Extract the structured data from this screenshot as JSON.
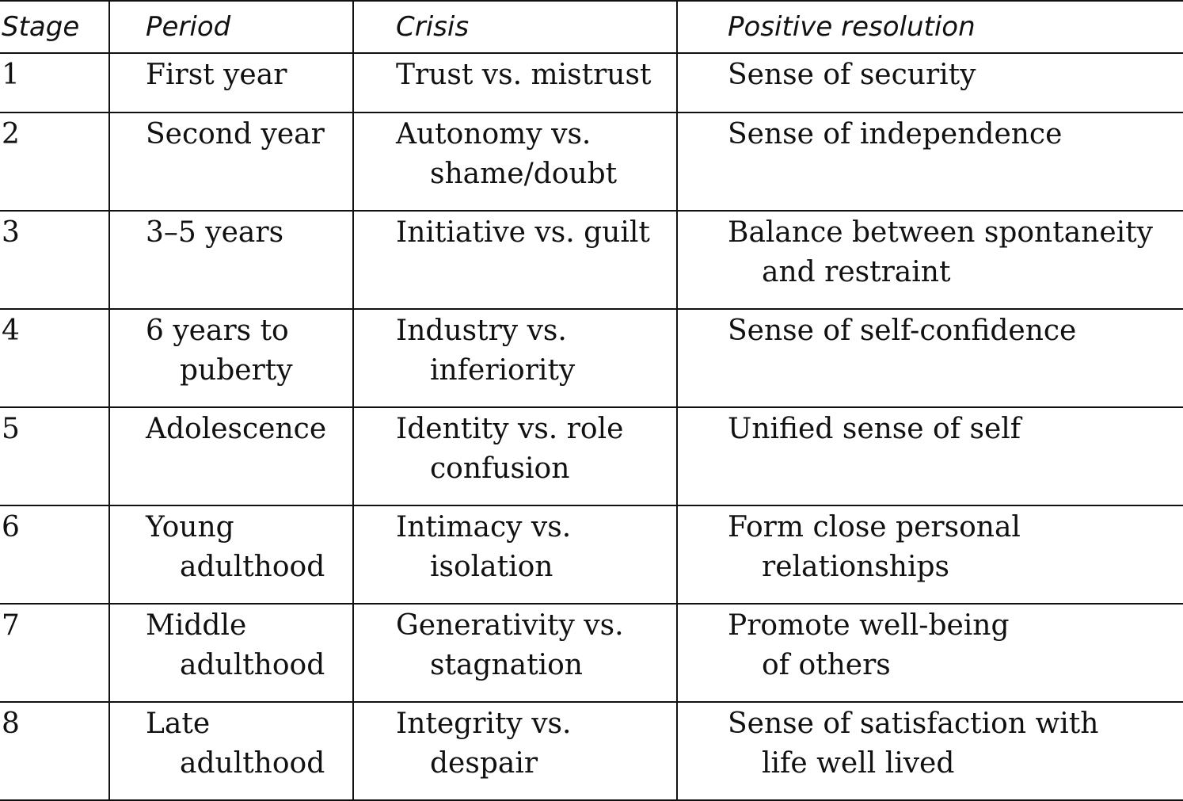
{
  "headers": {
    "stage": "Stage",
    "period": "Period",
    "crisis": "Crisis",
    "resolution": "Positive resolution"
  },
  "rows": [
    {
      "stage": "1",
      "period": [
        "First year"
      ],
      "crisis": [
        "Trust vs. mistrust"
      ],
      "resolution": [
        "Sense of security"
      ]
    },
    {
      "stage": "2",
      "period": [
        "Second year"
      ],
      "crisis": [
        "Autonomy vs.",
        "shame/doubt"
      ],
      "resolution": [
        "Sense of independence"
      ]
    },
    {
      "stage": "3",
      "period": [
        "3–5 years"
      ],
      "crisis": [
        "Initiative vs. guilt"
      ],
      "resolution": [
        "Balance between spontaneity",
        "and restraint"
      ]
    },
    {
      "stage": "4",
      "period": [
        "6 years to",
        "puberty"
      ],
      "crisis": [
        "Industry vs.",
        "inferiority"
      ],
      "resolution": [
        "Sense of self-confidence"
      ]
    },
    {
      "stage": "5",
      "period": [
        "Adolescence"
      ],
      "crisis": [
        "Identity vs. role",
        "confusion"
      ],
      "resolution": [
        "Unified sense of self"
      ]
    },
    {
      "stage": "6",
      "period": [
        "Young",
        "adulthood"
      ],
      "crisis": [
        "Intimacy vs.",
        "isolation"
      ],
      "resolution": [
        "Form close personal",
        "relationships"
      ]
    },
    {
      "stage": "7",
      "period": [
        "Middle",
        "adulthood"
      ],
      "crisis": [
        "Generativity vs.",
        "stagnation"
      ],
      "resolution": [
        "Promote well-being",
        "of others"
      ]
    },
    {
      "stage": "8",
      "period": [
        "Late",
        "adulthood"
      ],
      "crisis": [
        "Integrity vs.",
        "despair"
      ],
      "resolution": [
        "Sense of satisfaction with",
        "life well lived"
      ]
    }
  ]
}
